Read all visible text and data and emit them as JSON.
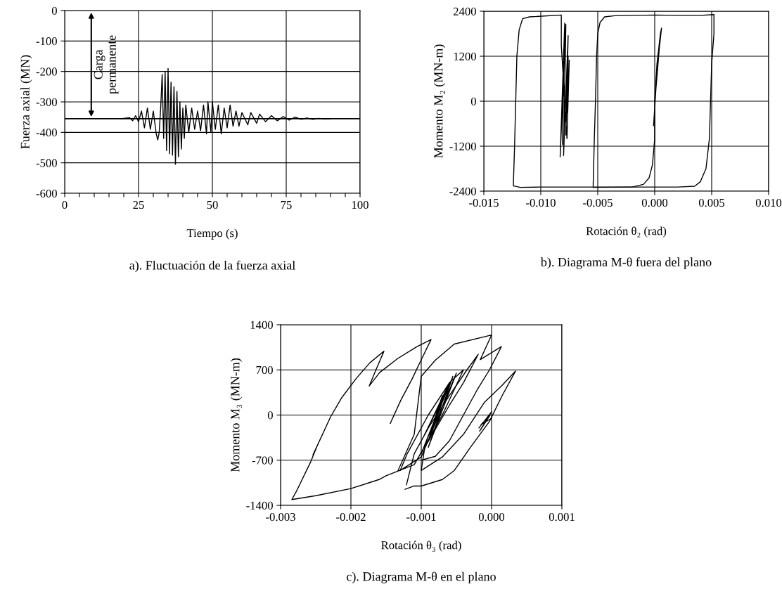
{
  "chart_data": [
    {
      "type": "line",
      "xlabel": "Tiempo (s)",
      "ylabel": "Fuerza axial (MN)",
      "title": "a). Fluctuación de la fuerza axial",
      "xlim": [
        0,
        100
      ],
      "ylim": [
        -600,
        0
      ],
      "xticks": [
        0,
        {
          "value": 5,
          "label": null
        },
        {
          "value": 10,
          "label": null
        },
        {
          "value": 15,
          "label": null
        },
        {
          "value": 20,
          "label": null
        },
        25,
        {
          "value": 30,
          "label": null
        },
        {
          "value": 35,
          "label": null
        },
        {
          "value": 40,
          "label": null
        },
        {
          "value": 45,
          "label": null
        },
        50,
        {
          "value": 55,
          "label": null
        },
        {
          "value": 60,
          "label": null
        },
        {
          "value": 65,
          "label": null
        },
        {
          "value": 70,
          "label": null
        },
        75,
        {
          "value": 80,
          "label": null
        },
        {
          "value": 85,
          "label": null
        },
        {
          "value": 90,
          "label": null
        },
        {
          "value": 95,
          "label": null
        },
        100
      ],
      "yticks": [
        -600,
        -500,
        -400,
        -300,
        -200,
        -100,
        0
      ],
      "grid": true,
      "ref_lines": [
        {
          "axis": "y",
          "value": -355,
          "color": "#000000"
        }
      ],
      "annotations": [
        {
          "text": "Carga\npermanente",
          "x": 9,
          "y": -355
        }
      ],
      "series": [
        {
          "color": "#000000",
          "x": [
            19,
            22,
            23,
            24,
            25,
            26,
            27,
            28,
            29,
            30,
            31,
            31.5,
            32,
            32.5,
            33,
            33.5,
            34,
            34.5,
            35,
            35.5,
            36,
            36.5,
            37,
            37.5,
            38,
            38.5,
            39,
            39.5,
            40,
            40.5,
            41,
            42,
            43,
            44,
            45,
            46,
            47,
            48,
            48.5,
            49.5,
            50,
            51,
            52,
            53,
            54,
            55,
            56,
            57,
            58,
            59,
            60,
            62,
            63,
            65,
            66,
            68,
            70,
            72,
            74,
            76,
            78,
            80,
            82,
            84,
            86,
            88,
            90
          ],
          "values": [
            -355,
            -352,
            -362,
            -345,
            -365,
            -330,
            -385,
            -320,
            -390,
            -330,
            -405,
            -425,
            -400,
            -320,
            -210,
            -420,
            -200,
            -460,
            -190,
            -470,
            -235,
            -475,
            -250,
            -505,
            -265,
            -480,
            -300,
            -455,
            -320,
            -420,
            -310,
            -400,
            -320,
            -390,
            -330,
            -395,
            -310,
            -405,
            -300,
            -400,
            -300,
            -390,
            -310,
            -405,
            -320,
            -385,
            -310,
            -380,
            -330,
            -380,
            -335,
            -375,
            -335,
            -370,
            -340,
            -365,
            -345,
            -362,
            -348,
            -360,
            -350,
            -357,
            -353,
            -357,
            -354,
            -356,
            -355
          ]
        }
      ]
    },
    {
      "type": "line",
      "xlabel": "Rotación θ₂ (rad)",
      "ylabel": "Momento M₂ (MN-m)",
      "title": "b). Diagrama M-θ fuera del plano",
      "xlim": [
        -0.015,
        0.01
      ],
      "ylim": [
        -2400,
        2400
      ],
      "xticks": [
        {
          "value": -0.015,
          "label": "-0.015"
        },
        {
          "value": -0.01,
          "label": "-0.010"
        },
        {
          "value": -0.005,
          "label": "-0.005"
        },
        {
          "value": 0,
          "label": "0.000"
        },
        {
          "value": 0.005,
          "label": "0.005"
        },
        {
          "value": 0.01,
          "label": "0.010"
        }
      ],
      "yticks": [
        -2400,
        -1200,
        0,
        1200,
        2400
      ],
      "grid": true,
      "series": [
        {
          "color": "#000000",
          "x": [
            -0.0081,
            -0.0079,
            -0.0083,
            -0.0078,
            -0.008,
            -0.0076,
            -0.0078,
            -0.0076,
            -0.0077,
            -0.0075,
            -0.0077,
            -0.0082,
            -0.0082,
            -0.011,
            -0.0116,
            -0.0119,
            -0.0121,
            -0.0122,
            -0.0123,
            -0.0124,
            -0.0124,
            -0.0122,
            -0.0118,
            -0.01,
            -0.006,
            -0.002,
            -0.001,
            -0.0005,
            -0.0002,
            0.0,
            0.0,
            0.0002,
            0.0005,
            0.0006,
            0.0004,
            0.0001,
            -0.0001
          ],
          "values": [
            -1150,
            2080,
            -1480,
            2050,
            -1450,
            1750,
            -900,
            1200,
            -300,
            1100,
            -1000,
            1500,
            2300,
            2250,
            2200,
            1900,
            1200,
            0,
            -1200,
            -2150,
            -2260,
            -2270,
            -2300,
            -2290,
            -2290,
            -2290,
            -2220,
            -2050,
            -1700,
            -1000,
            0,
            1000,
            1800,
            1950,
            1400,
            300,
            -650
          ]
        },
        {
          "color": "#000000",
          "x": [
            -0.0054,
            -0.0054,
            -0.0053,
            -0.0052,
            -0.0051,
            -0.005,
            -0.0048,
            -0.0044,
            -0.0035,
            0.0,
            0.002,
            0.004,
            0.0052,
            0.0052,
            0.005,
            0.0049,
            0.0048,
            0.0045,
            0.004,
            0.0035,
            0.002,
            -0.002,
            -0.0054
          ],
          "values": [
            -2290,
            -2200,
            -1000,
            0,
            1200,
            1800,
            2100,
            2250,
            2280,
            2300,
            2290,
            2290,
            2310,
            1800,
            1000,
            0,
            -1000,
            -1800,
            -2150,
            -2270,
            -2290,
            -2290,
            -2300
          ]
        }
      ]
    },
    {
      "type": "line",
      "xlabel": "Rotación θ₃ (rad)",
      "ylabel": "Momento M₃ (MN-m)",
      "title": "c). Diagrama M-θ en el plano",
      "xlim": [
        -0.003,
        0.001
      ],
      "ylim": [
        -1400,
        1400
      ],
      "xticks": [
        {
          "value": -0.003,
          "label": "-0.003"
        },
        {
          "value": -0.002,
          "label": "-0.002"
        },
        {
          "value": -0.001,
          "label": "-0.001"
        },
        {
          "value": 0,
          "label": "0.000"
        },
        {
          "value": 0.001,
          "label": "0.001"
        }
      ],
      "yticks": [
        -1400,
        -700,
        0,
        700,
        1400
      ],
      "grid": true,
      "series": [
        {
          "color": "#000000",
          "x": [
            -0.00085,
            -0.0007,
            -0.0009,
            -0.00065,
            -0.00095,
            -0.0006,
            -0.001,
            -0.00055,
            -0.0009,
            -0.0005,
            -0.001,
            -0.0013,
            -0.0012,
            -0.0009,
            -0.0006,
            -0.0004,
            -0.0007,
            -0.0011,
            -0.0015,
            -0.0016,
            -0.002,
            -0.0025,
            -0.00284,
            -0.00276,
            -0.00257,
            -0.00248,
            -0.00254,
            -0.00229,
            -0.00213,
            -0.00193,
            -0.00173,
            -0.00153,
            -0.00166,
            -0.00174,
            -0.00159,
            -0.00133,
            -0.00106,
            -0.00086,
            -0.00099,
            -0.00113,
            -0.00129,
            -0.00144
          ],
          "values": [
            -200,
            300,
            -400,
            350,
            -300,
            500,
            -600,
            600,
            -500,
            650,
            -650,
            -860,
            -600,
            0,
            500,
            700,
            0,
            -770,
            -940,
            -1000,
            -1140,
            -1250,
            -1310,
            -1150,
            -720,
            -480,
            -620,
            -30,
            270,
            560,
            810,
            990,
            660,
            450,
            660,
            880,
            1060,
            1170,
            880,
            560,
            230,
            -130
          ]
        },
        {
          "color": "#000000",
          "x": [
            -0.00123,
            -0.0011,
            -0.001,
            -0.0007,
            -0.00053,
            -0.0003,
            -3e-05,
            0.00015,
            0.00034,
            0.00014,
            -0.0001,
            -0.0004,
            -0.0007,
            -0.001,
            -0.00095,
            -0.0006,
            -0.0004,
            -0.00019,
            -0.00035,
            -0.0006,
            -0.0009,
            -0.0011,
            -0.00121
          ],
          "values": [
            -1150,
            -1100,
            -1100,
            -1000,
            -860,
            -500,
            -100,
            300,
            680,
            450,
            200,
            -300,
            -650,
            -860,
            -500,
            150,
            500,
            940,
            700,
            300,
            -200,
            -600,
            -1080
          ]
        },
        {
          "color": "#000000",
          "x": [
            -0.00133,
            -0.0011,
            -0.001,
            -0.0008,
            -0.00053,
            0.0,
            -0.00016,
            0.00014,
            -3e-05,
            -0.0002,
            -0.0004,
            -0.0006,
            -0.0008,
            -0.001
          ],
          "values": [
            -860,
            -300,
            600,
            850,
            1100,
            1240,
            860,
            1060,
            700,
            400,
            0,
            -400,
            -640,
            -700
          ]
        },
        {
          "color": "#000000",
          "x": [
            -0.00018,
            0.0,
            -0.00017,
            -2e-05,
            -0.00015,
            0.0
          ],
          "values": [
            -200,
            50,
            -250,
            0,
            -150,
            -50
          ]
        }
      ]
    }
  ]
}
